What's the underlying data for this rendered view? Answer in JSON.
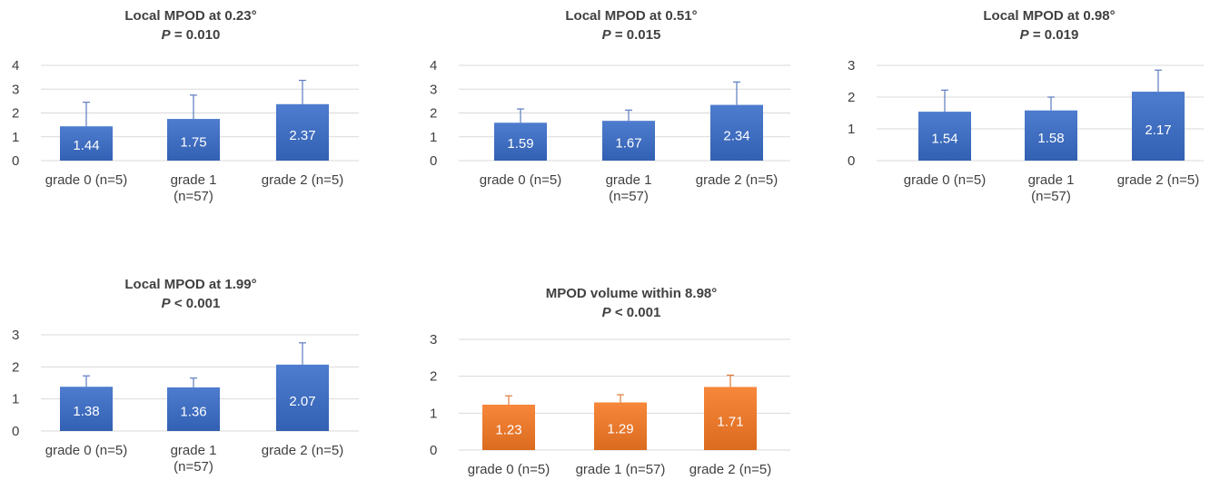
{
  "chart_data": [
    {
      "type": "bar",
      "title": "Local MPOD at 0.23°",
      "p_label": "P",
      "p_value": " = 0.010",
      "categories": [
        [
          "grade 0 (n=5)"
        ],
        [
          "grade 1",
          "(n=57)"
        ],
        [
          "grade 2 (n=5)"
        ]
      ],
      "values": [
        1.44,
        1.75,
        2.37
      ],
      "data_labels": [
        "1.44",
        "1.75",
        "2.37"
      ],
      "error_upper": [
        2.45,
        2.75,
        3.37
      ],
      "yticks": [
        "0",
        "1",
        "2",
        "3",
        "4"
      ],
      "ylim": [
        0,
        4
      ],
      "color": "#4472c4"
    },
    {
      "type": "bar",
      "title": "Local MPOD at 0.51°",
      "p_label": "P",
      "p_value": " = 0.015",
      "categories": [
        [
          "grade 0 (n=5)"
        ],
        [
          "grade 1",
          "(n=57)"
        ],
        [
          "grade 2 (n=5)"
        ]
      ],
      "values": [
        1.59,
        1.67,
        2.34
      ],
      "data_labels": [
        "1.59",
        "1.67",
        "2.34"
      ],
      "error_upper": [
        2.17,
        2.12,
        3.3
      ],
      "yticks": [
        "0",
        "1",
        "2",
        "3",
        "4"
      ],
      "ylim": [
        0,
        4
      ],
      "color": "#4472c4"
    },
    {
      "type": "bar",
      "title": "Local MPOD at 0.98°",
      "p_label": "P",
      "p_value": " = 0.019",
      "categories": [
        [
          "grade 0 (n=5)"
        ],
        [
          "grade 1",
          "(n=57)"
        ],
        [
          "grade 2 (n=5)"
        ]
      ],
      "values": [
        1.54,
        1.58,
        2.17
      ],
      "data_labels": [
        "1.54",
        "1.58",
        "2.17"
      ],
      "error_upper": [
        2.22,
        2.0,
        2.85
      ],
      "yticks": [
        "0",
        "1",
        "2",
        "3"
      ],
      "ylim": [
        0,
        3
      ],
      "color": "#4472c4"
    },
    {
      "type": "bar",
      "title": "Local MPOD at 1.99°",
      "p_label": "P",
      "p_value": " < 0.001",
      "categories": [
        [
          "grade 0 (n=5)"
        ],
        [
          "grade 1",
          "(n=57)"
        ],
        [
          "grade 2 (n=5)"
        ]
      ],
      "values": [
        1.38,
        1.36,
        2.07
      ],
      "data_labels": [
        "1.38",
        "1.36",
        "2.07"
      ],
      "error_upper": [
        1.72,
        1.65,
        2.75
      ],
      "yticks": [
        "0",
        "1",
        "2",
        "3"
      ],
      "ylim": [
        0,
        3
      ],
      "color": "#4472c4"
    },
    {
      "type": "bar",
      "title": "MPOD volume within 8.98°",
      "p_label": "P",
      "p_value": " < 0.001",
      "categories": [
        [
          "grade 0 (n=5)"
        ],
        [
          "grade 1 (n=57)"
        ],
        [
          "grade 2 (n=5)"
        ]
      ],
      "values": [
        1.23,
        1.29,
        1.71
      ],
      "data_labels": [
        "1.23",
        "1.29",
        "1.71"
      ],
      "error_upper": [
        1.47,
        1.5,
        2.03
      ],
      "yticks": [
        "0",
        "1",
        "2",
        "3"
      ],
      "ylim": [
        0,
        3
      ],
      "color": "#ed7d31"
    }
  ]
}
